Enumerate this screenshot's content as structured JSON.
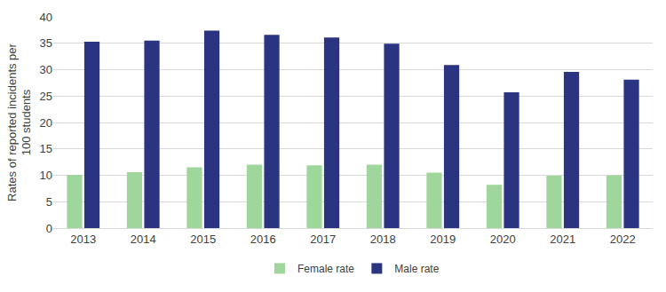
{
  "chart_data": {
    "type": "bar",
    "y_label": "Rates of reported incidents per 100 students",
    "categories": [
      "2013",
      "2014",
      "2015",
      "2016",
      "2017",
      "2018",
      "2019",
      "2020",
      "2021",
      "2022"
    ],
    "series": [
      {
        "name": "Female rate",
        "color": "#9fd69b",
        "values": [
          10.1,
          10.6,
          11.5,
          12.0,
          11.9,
          12.0,
          10.5,
          8.2,
          9.9,
          10.0
        ]
      },
      {
        "name": "Male rate",
        "color": "#2b3480",
        "values": [
          35.3,
          35.5,
          37.4,
          36.6,
          36.1,
          34.9,
          30.9,
          25.7,
          29.6,
          28.1
        ]
      }
    ],
    "ylim": [
      0,
      40
    ],
    "yticks": [
      0,
      5,
      10,
      15,
      20,
      25,
      30,
      35,
      40
    ],
    "grid": true,
    "legend": "bottom"
  }
}
